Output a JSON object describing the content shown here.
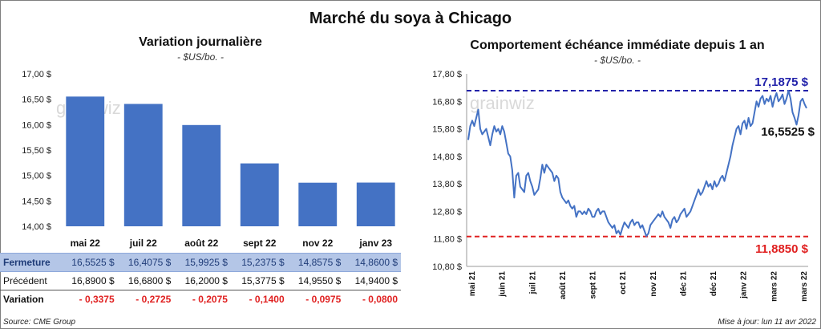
{
  "main_title": "Marché du soya à Chicago",
  "left_chart": {
    "title": "Variation journalière",
    "subtitle": "- $US/bo. -",
    "watermark": "grainwiz",
    "chart_data": {
      "type": "bar",
      "categories": [
        "mai 22",
        "juil 22",
        "août 22",
        "sept 22",
        "nov 22",
        "janv 23"
      ],
      "values": [
        16.5525,
        16.4075,
        15.9925,
        15.2375,
        14.8575,
        14.86
      ],
      "ylim": [
        14.0,
        17.0
      ],
      "yticks": [
        "17,00 $",
        "16,50 $",
        "16,00 $",
        "15,50 $",
        "15,00 $",
        "14,50 $",
        "14,00 $"
      ],
      "bar_color": "#4472c4"
    }
  },
  "table": {
    "rows": [
      {
        "label": "Fermeture",
        "values": [
          "16,5525  $",
          "16,4075  $",
          "15,9925  $",
          "15,2375  $",
          "14,8575  $",
          "14,8600  $"
        ]
      },
      {
        "label": "Précédent",
        "values": [
          "16,8900  $",
          "16,6800  $",
          "16,2000  $",
          "15,3775  $",
          "14,9550  $",
          "14,9400  $"
        ]
      },
      {
        "label": "Variation",
        "values": [
          "- 0,3375",
          "- 0,2725",
          "- 0,2075",
          "- 0,1400",
          "- 0,0975",
          "- 0,0800"
        ]
      }
    ]
  },
  "right_chart": {
    "title": "Comportement  échéance immédiate depuis 1 an",
    "subtitle": "- $US/bo. -",
    "watermark": "grainwiz",
    "chart_data": {
      "type": "line",
      "ylim": [
        10.8,
        17.8
      ],
      "yticks": [
        "17,80 $",
        "16,80 $",
        "15,80 $",
        "14,80 $",
        "13,80 $",
        "12,80 $",
        "11,80 $",
        "10,80 $"
      ],
      "xticks": [
        "mai 21",
        "juin 21",
        "juil 21",
        "août 21",
        "sept 21",
        "oct 21",
        "nov 21",
        "déc 21",
        "déc 21",
        "janv 22",
        "mars 22",
        "mars 22"
      ],
      "line_color": "#4472c4",
      "high": {
        "value": 17.1875,
        "label": "17,1875  $",
        "color": "#2222aa"
      },
      "low": {
        "value": 11.885,
        "label": "11,8850  $",
        "color": "#e02020"
      },
      "last_label": "16,5525 $",
      "values": [
        15.4,
        15.9,
        16.1,
        15.9,
        16.2,
        16.5,
        15.8,
        15.6,
        15.7,
        15.8,
        15.5,
        15.2,
        15.6,
        15.9,
        15.7,
        15.8,
        15.6,
        15.9,
        15.7,
        15.3,
        14.9,
        14.8,
        14.3,
        13.3,
        14.1,
        14.2,
        13.7,
        13.6,
        13.5,
        14.1,
        14.2,
        13.9,
        13.7,
        13.4,
        13.5,
        13.6,
        14.0,
        14.5,
        14.2,
        14.5,
        14.4,
        14.3,
        14.2,
        13.9,
        14.1,
        14.0,
        13.5,
        13.3,
        13.2,
        13.1,
        13.2,
        13.0,
        12.9,
        13.0,
        12.6,
        12.8,
        12.8,
        12.7,
        12.8,
        12.7,
        12.9,
        12.8,
        12.6,
        12.6,
        12.8,
        12.9,
        12.7,
        12.8,
        12.8,
        12.6,
        12.4,
        12.3,
        12.2,
        12.3,
        12.0,
        12.1,
        11.95,
        12.2,
        12.4,
        12.3,
        12.2,
        12.4,
        12.5,
        12.3,
        12.4,
        12.4,
        12.2,
        12.3,
        12.1,
        11.9,
        12.0,
        12.3,
        12.4,
        12.5,
        12.6,
        12.7,
        12.6,
        12.8,
        12.6,
        12.5,
        12.4,
        12.2,
        12.5,
        12.6,
        12.4,
        12.5,
        12.7,
        12.8,
        12.9,
        12.6,
        12.7,
        12.8,
        13.0,
        13.2,
        13.4,
        13.6,
        13.4,
        13.5,
        13.7,
        13.9,
        13.7,
        13.8,
        13.6,
        13.9,
        13.7,
        13.8,
        14.0,
        14.1,
        13.9,
        14.2,
        14.5,
        14.8,
        15.2,
        15.5,
        15.8,
        15.9,
        15.6,
        16.0,
        16.1,
        15.8,
        16.2,
        15.9,
        16.0,
        16.4,
        16.8,
        16.6,
        16.9,
        17.0,
        16.7,
        16.9,
        16.8,
        17.0,
        16.6,
        16.9,
        17.1,
        16.8,
        16.9,
        17.05,
        16.7,
        16.9,
        17.1875,
        16.9,
        16.4,
        16.2,
        15.95,
        16.3,
        16.8,
        16.9,
        16.7,
        16.5525
      ]
    }
  },
  "footer": {
    "source": "Source: CME Group",
    "updated": "Mise à jour: lun 11 avr 2022"
  }
}
